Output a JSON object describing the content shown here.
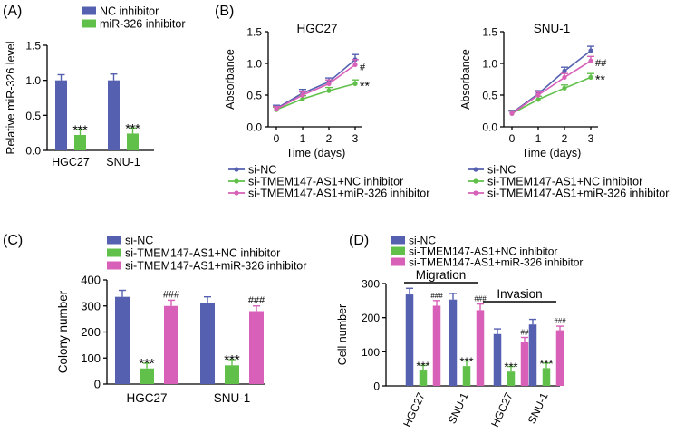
{
  "colors": {
    "blue": "#5560b0",
    "green": "#60c04a",
    "pink": "#d860b8",
    "red": "#e8201a"
  },
  "panels": {
    "A": {
      "letter": "(A)"
    },
    "B": {
      "letter": "(B)"
    },
    "C": {
      "letter": "(C)"
    },
    "D": {
      "letter": "(D)"
    }
  },
  "chart_data": [
    {
      "id": "A",
      "type": "bar",
      "title": "",
      "ylabel": "Relative miR-326 level",
      "categories": [
        "HGC27",
        "SNU-1"
      ],
      "ylim": [
        0,
        1.5
      ],
      "yticks": [
        "0.0",
        "0.5",
        "1.0",
        "1.5"
      ],
      "legend": [
        "NC inhibitor",
        "miR-326 inhibitor"
      ],
      "series": [
        {
          "name": "NC inhibitor",
          "values": [
            1.0,
            1.0
          ],
          "errors": [
            0.08,
            0.09
          ]
        },
        {
          "name": "miR-326 inhibitor",
          "values": [
            0.22,
            0.24
          ],
          "errors": [
            0.08,
            0.08
          ]
        }
      ],
      "annotations": [
        {
          "series": 1,
          "category": 0,
          "text": "***"
        },
        {
          "series": 1,
          "category": 1,
          "text": "***"
        }
      ]
    },
    {
      "id": "B1",
      "type": "line",
      "title": "HGC27",
      "xlabel": "Time (days)",
      "ylabel": "Absorbance",
      "x": [
        0,
        1,
        2,
        3
      ],
      "ylim": [
        0,
        1.5
      ],
      "yticks": [
        "0.0",
        "0.5",
        "1.0",
        "1.5"
      ],
      "xticks": [
        "0",
        "1",
        "2",
        "3"
      ],
      "series": [
        {
          "name": "si-NC",
          "values": [
            0.29,
            0.53,
            0.71,
            1.06
          ],
          "errors": [
            0.05,
            0.06,
            0.06,
            0.08
          ]
        },
        {
          "name": "si-TMEM147-AS1+NC inhibitor",
          "values": [
            0.27,
            0.44,
            0.57,
            0.68
          ],
          "errors": [
            0.04,
            0.05,
            0.05,
            0.06
          ]
        },
        {
          "name": "si-TMEM147-AS1+miR-326 inhibitor",
          "values": [
            0.28,
            0.5,
            0.68,
            0.98
          ],
          "errors": [
            0.04,
            0.05,
            0.06,
            0.08
          ]
        }
      ],
      "annotations": [
        {
          "series": 2,
          "point": 3,
          "text": "#"
        },
        {
          "series": 1,
          "point": 3,
          "text": "**"
        }
      ]
    },
    {
      "id": "B2",
      "type": "line",
      "title": "SNU-1",
      "xlabel": "Time (days)",
      "ylabel": "Absorbance",
      "x": [
        0,
        1,
        2,
        3
      ],
      "ylim": [
        0,
        1.5
      ],
      "yticks": [
        "0.0",
        "0.5",
        "1.0",
        "1.5"
      ],
      "xticks": [
        "0",
        "1",
        "2",
        "3"
      ],
      "series": [
        {
          "name": "si-NC",
          "values": [
            0.22,
            0.52,
            0.88,
            1.2
          ],
          "errors": [
            0.04,
            0.05,
            0.06,
            0.07
          ]
        },
        {
          "name": "si-TMEM147-AS1+NC inhibitor",
          "values": [
            0.21,
            0.43,
            0.61,
            0.78
          ],
          "errors": [
            0.04,
            0.05,
            0.05,
            0.06
          ]
        },
        {
          "name": "si-TMEM147-AS1+miR-326 inhibitor",
          "values": [
            0.21,
            0.5,
            0.78,
            1.04
          ],
          "errors": [
            0.04,
            0.05,
            0.06,
            0.07
          ]
        }
      ],
      "annotations": [
        {
          "series": 2,
          "point": 3,
          "text": "##"
        },
        {
          "series": 1,
          "point": 3,
          "text": "**"
        }
      ]
    },
    {
      "id": "C",
      "type": "bar",
      "title": "",
      "ylabel": "Colony number",
      "categories": [
        "HGC27",
        "SNU-1"
      ],
      "ylim": [
        0,
        400
      ],
      "yticks": [
        "0",
        "100",
        "200",
        "300",
        "400"
      ],
      "legend": [
        "si-NC",
        "si-TMEM147-AS1+NC inhibitor",
        "si-TMEM147-AS1+miR-326 inhibitor"
      ],
      "series": [
        {
          "name": "si-NC",
          "values": [
            335,
            310
          ],
          "errors": [
            25,
            25
          ]
        },
        {
          "name": "si-TMEM147-AS1+NC inhibitor",
          "values": [
            60,
            72
          ],
          "errors": [
            20,
            22
          ]
        },
        {
          "name": "si-TMEM147-AS1+miR-326 inhibitor",
          "values": [
            300,
            280
          ],
          "errors": [
            22,
            20
          ]
        }
      ],
      "annotations": [
        {
          "series": 1,
          "category": 0,
          "text": "***"
        },
        {
          "series": 2,
          "category": 0,
          "text": "###"
        },
        {
          "series": 1,
          "category": 1,
          "text": "***"
        },
        {
          "series": 2,
          "category": 1,
          "text": "###"
        }
      ]
    },
    {
      "id": "D",
      "type": "bar",
      "title": "",
      "ylabel": "Cell number",
      "categories": [
        "HGC27",
        "SNU-1",
        "HGC27",
        "SNU-1"
      ],
      "groups": [
        {
          "label": "Migration",
          "categories": [
            0,
            1
          ]
        },
        {
          "label": "Invasion",
          "categories": [
            2,
            3
          ]
        }
      ],
      "ylim": [
        0,
        300
      ],
      "yticks": [
        "0",
        "100",
        "200",
        "300"
      ],
      "legend": [
        "si-NC",
        "si-TMEM147-AS1+NC inhibitor",
        "si-TMEM147-AS1+miR-326 inhibitor"
      ],
      "series": [
        {
          "name": "si-NC",
          "values": [
            268,
            253,
            152,
            180
          ],
          "errors": [
            18,
            18,
            15,
            15
          ]
        },
        {
          "name": "si-TMEM147-AS1+NC inhibitor",
          "values": [
            45,
            58,
            42,
            52
          ],
          "errors": [
            15,
            15,
            15,
            15
          ]
        },
        {
          "name": "si-TMEM147-AS1+miR-326 inhibitor",
          "values": [
            235,
            222,
            130,
            163
          ],
          "errors": [
            15,
            18,
            12,
            12
          ]
        }
      ],
      "annotations": [
        {
          "series": 1,
          "category": 0,
          "text": "***"
        },
        {
          "series": 2,
          "category": 0,
          "text": "###"
        },
        {
          "series": 1,
          "category": 1,
          "text": "***"
        },
        {
          "series": 2,
          "category": 1,
          "text": "###"
        },
        {
          "series": 1,
          "category": 2,
          "text": "***"
        },
        {
          "series": 2,
          "category": 2,
          "text": "##"
        },
        {
          "series": 1,
          "category": 3,
          "text": "***"
        },
        {
          "series": 2,
          "category": 3,
          "text": "###"
        }
      ]
    }
  ]
}
